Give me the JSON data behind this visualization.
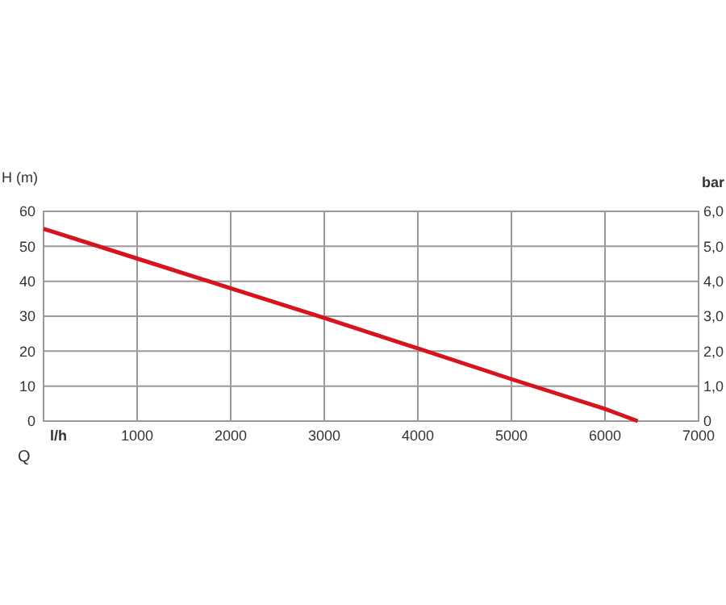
{
  "chart_data": {
    "type": "line",
    "xlabel": "l/h",
    "ylabel": "H (m)",
    "y2label": "bar",
    "x": [
      0,
      1000,
      2000,
      3000,
      4000,
      5000,
      6000,
      6350
    ],
    "series": [
      {
        "color": "#d7141e",
        "values": [
          55,
          46.5,
          38,
          29.5,
          20.8,
          12,
          3.5,
          0
        ]
      }
    ],
    "xlim": [
      0,
      7000
    ],
    "xticks": [
      {
        "value": 0,
        "label": null
      },
      1000,
      2000,
      3000,
      4000,
      5000,
      6000,
      7000
    ],
    "ylim": [
      0,
      60
    ],
    "yticks": [
      0,
      10,
      20,
      30,
      40,
      50,
      60
    ],
    "y2lim": [
      0,
      6
    ],
    "y2ticks": [
      0,
      {
        "value": 1,
        "label": "1,0"
      },
      {
        "value": 2,
        "label": "2,0"
      },
      {
        "value": 3,
        "label": "3,0"
      },
      {
        "value": 4,
        "label": "4,0"
      },
      {
        "value": 5,
        "label": "5,0"
      },
      {
        "value": 6,
        "label": "6,0"
      }
    ],
    "grid": true,
    "marker": "none",
    "line_style": "solid",
    "annotations": [
      "Q"
    ]
  }
}
